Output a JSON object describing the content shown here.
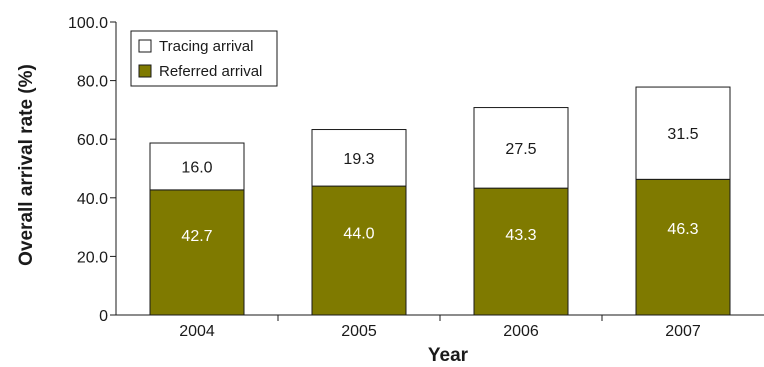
{
  "chart_data": {
    "type": "bar",
    "stacked": true,
    "categories": [
      "2004",
      "2005",
      "2006",
      "2007"
    ],
    "series": [
      {
        "name": "Referred arrival",
        "values": [
          42.7,
          44.0,
          43.3,
          46.3
        ],
        "labels": [
          "42.7",
          "44.0",
          "43.3",
          "46.3"
        ],
        "color": "#7f7a00"
      },
      {
        "name": "Tracing arrival",
        "values": [
          16.0,
          19.3,
          27.5,
          31.5
        ],
        "labels": [
          "16.0",
          "19.3",
          "27.5",
          "31.5"
        ],
        "color": "#ffffff"
      }
    ],
    "xlabel": "Year",
    "ylabel": "Overall arrival rate (%)",
    "ylim": [
      0,
      100
    ],
    "yticks": [
      0,
      20,
      40,
      60,
      80,
      100
    ],
    "ytick_labels": [
      "0",
      "20.0",
      "40.0",
      "60.0",
      "80.0",
      "100.0"
    ],
    "legend": {
      "position": "top-left",
      "entries": [
        "Tracing arrival",
        "Referred arrival"
      ]
    },
    "grid": false
  }
}
